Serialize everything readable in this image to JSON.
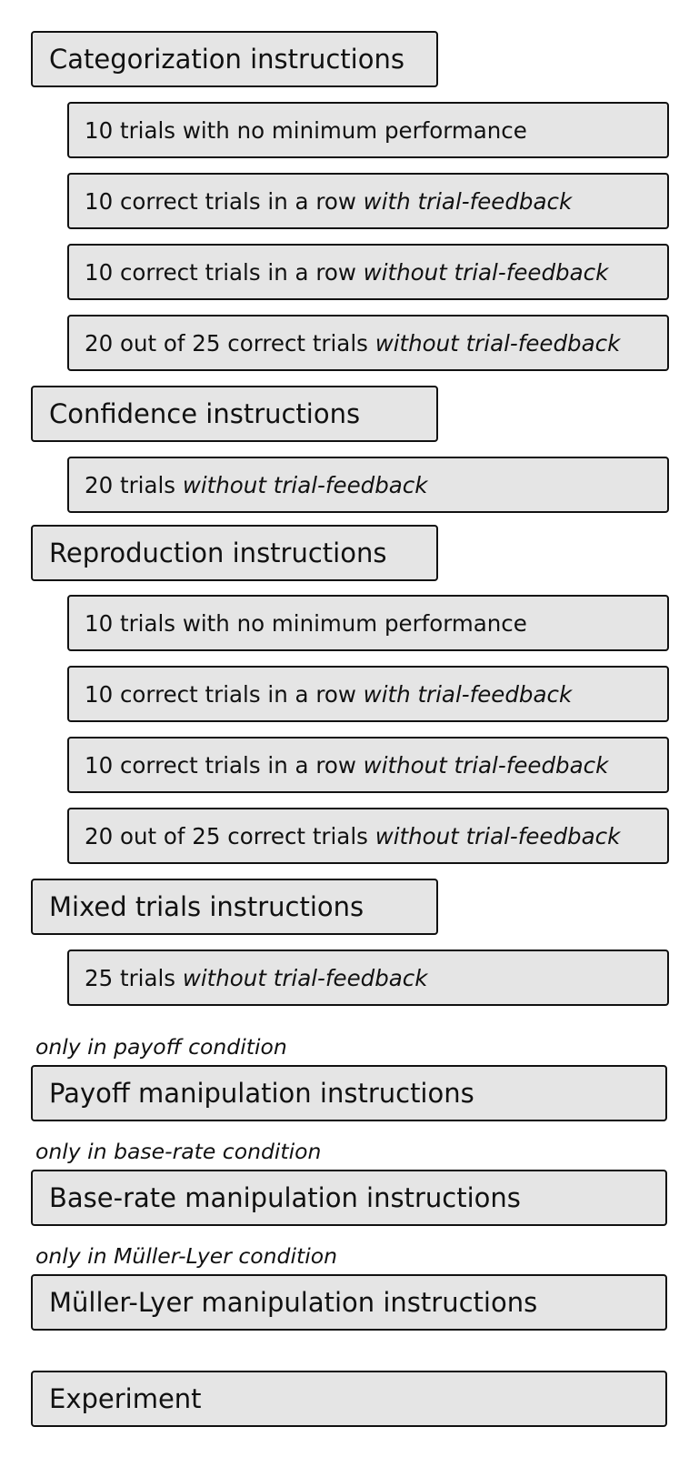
{
  "categorization": {
    "title": "Categorization instructions",
    "items": [
      {
        "plain": "10 trials with no minimum performance",
        "italic": ""
      },
      {
        "plain": "10 correct trials in a row ",
        "italic": "with trial-feedback"
      },
      {
        "plain": "10 correct trials in a row ",
        "italic": "without trial-feedback"
      },
      {
        "plain": "20 out of 25 correct trials ",
        "italic": "without trial-feedback"
      }
    ]
  },
  "confidence": {
    "title": "Confidence instructions",
    "items": [
      {
        "plain": "20 trials ",
        "italic": "without trial-feedback"
      }
    ]
  },
  "reproduction": {
    "title": "Reproduction instructions",
    "items": [
      {
        "plain": "10 trials with no minimum performance",
        "italic": ""
      },
      {
        "plain": "10 correct trials in a row ",
        "italic": "with trial-feedback"
      },
      {
        "plain": "10 correct trials in a row ",
        "italic": "without trial-feedback"
      },
      {
        "plain": "20 out of 25 correct trials ",
        "italic": "without trial-feedback"
      }
    ]
  },
  "mixed": {
    "title": "Mixed trials instructions",
    "items": [
      {
        "plain": "25 trials ",
        "italic": "without trial-feedback"
      }
    ]
  },
  "payoff": {
    "note": "only in payoff condition",
    "title": "Payoff manipulation instructions"
  },
  "base_rate": {
    "note": "only in base-rate condition",
    "title": "Base-rate manipulation instructions"
  },
  "muller_lyer": {
    "note": "only in Müller-Lyer condition",
    "title": "Müller-Lyer manipulation instructions"
  },
  "experiment": {
    "title": "Experiment"
  }
}
